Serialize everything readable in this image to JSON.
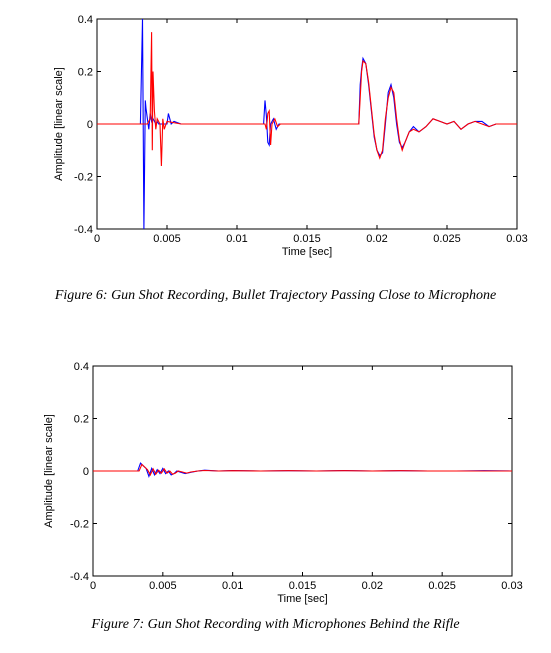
{
  "figures": [
    {
      "caption": "Figure 6:  Gun Shot Recording, Bullet Trajectory Passing Close to Microphone"
    },
    {
      "caption": "Figure 7:  Gun Shot Recording with Microphones Behind the Rifle"
    }
  ],
  "chart_data": [
    {
      "type": "line",
      "title": "",
      "xlabel": "Time [sec]",
      "ylabel": "Amplitude [linear scale]",
      "xlim": [
        0,
        0.03
      ],
      "ylim": [
        -0.4,
        0.4
      ],
      "xticks": [
        "0",
        "0.005",
        "0.01",
        "0.015",
        "0.02",
        "0.025",
        "0.03"
      ],
      "yticks": [
        "0.4",
        "0.2",
        "0",
        "-0.2",
        "-0.4"
      ],
      "grid": false,
      "series": [
        {
          "color": "#0000ff",
          "x": [
            0,
            0.0031,
            0.00325,
            0.00335,
            0.00345,
            0.0035,
            0.0036,
            0.0037,
            0.0038,
            0.0039,
            0.004,
            0.0042,
            0.0043,
            0.0044,
            0.005,
            0.0051,
            0.0052,
            0.0053,
            0.0055,
            0.006,
            0.0119,
            0.012,
            0.0121,
            0.0122,
            0.0123,
            0.0124,
            0.0126,
            0.0128,
            0.013,
            0.0135,
            0.014,
            0.016,
            0.0187,
            0.0188,
            0.0189,
            0.019,
            0.0192,
            0.0194,
            0.0196,
            0.0198,
            0.02,
            0.0202,
            0.0204,
            0.0206,
            0.0208,
            0.021,
            0.0212,
            0.0214,
            0.0216,
            0.0218,
            0.022,
            0.0223,
            0.0226,
            0.023,
            0.0235,
            0.024,
            0.0245,
            0.025,
            0.0255,
            0.026,
            0.0265,
            0.027,
            0.0275,
            0.028,
            0.0285,
            0.029,
            0.0295,
            0.03
          ],
          "y": [
            0,
            0,
            0.4,
            -0.4,
            0.09,
            0.06,
            0.02,
            -0.02,
            0.04,
            0.01,
            0.02,
            0.0,
            0.01,
            0.0,
            0.0,
            0.04,
            0.02,
            0.0,
            0.01,
            0.0,
            0.0,
            0.09,
            0.03,
            -0.07,
            -0.08,
            0.0,
            0.02,
            -0.02,
            0.0,
            0.0,
            0.0,
            0.0,
            0.0,
            0.15,
            0.21,
            0.25,
            0.23,
            0.15,
            0.05,
            -0.05,
            -0.1,
            -0.12,
            -0.11,
            0.0,
            0.12,
            0.15,
            0.1,
            0.0,
            -0.07,
            -0.09,
            -0.07,
            -0.03,
            -0.01,
            -0.03,
            -0.01,
            0.02,
            0.01,
            0.0,
            0.01,
            -0.02,
            0.0,
            0.01,
            0.01,
            -0.01,
            0.0,
            0.0,
            0.0,
            0.0
          ]
        },
        {
          "color": "#ff0000",
          "x": [
            0,
            0.0036,
            0.0038,
            0.0039,
            0.00395,
            0.004,
            0.0041,
            0.0042,
            0.0043,
            0.0045,
            0.0046,
            0.0047,
            0.0048,
            0.005,
            0.006,
            0.012,
            0.0121,
            0.0122,
            0.0123,
            0.0124,
            0.0125,
            0.0127,
            0.0129,
            0.0131,
            0.0135,
            0.014,
            0.016,
            0.0187,
            0.0188,
            0.0189,
            0.019,
            0.0192,
            0.0194,
            0.0196,
            0.0198,
            0.02,
            0.0202,
            0.0204,
            0.0206,
            0.0208,
            0.021,
            0.0212,
            0.0214,
            0.0216,
            0.0218,
            0.022,
            0.0223,
            0.0226,
            0.023,
            0.0235,
            0.024,
            0.0245,
            0.025,
            0.0255,
            0.026,
            0.0265,
            0.027,
            0.0275,
            0.028,
            0.0285,
            0.029,
            0.0295,
            0.03
          ],
          "y": [
            0,
            0,
            0.02,
            0.35,
            -0.1,
            0.2,
            0.05,
            -0.02,
            0.02,
            0.0,
            -0.16,
            0.02,
            -0.02,
            0.01,
            0.0,
            0.0,
            -0.02,
            0.04,
            0.05,
            -0.08,
            0.0,
            0.02,
            -0.01,
            0.0,
            0.0,
            0.0,
            0.0,
            0.0,
            0.1,
            0.2,
            0.24,
            0.23,
            0.16,
            0.06,
            -0.04,
            -0.1,
            -0.13,
            -0.1,
            0.02,
            0.1,
            0.14,
            0.12,
            0.02,
            -0.06,
            -0.1,
            -0.07,
            -0.03,
            -0.02,
            -0.03,
            -0.01,
            0.02,
            0.01,
            0.0,
            0.01,
            -0.02,
            0.0,
            0.01,
            0.0,
            -0.01,
            0.0,
            0.0,
            0.0,
            0.0
          ]
        }
      ]
    },
    {
      "type": "line",
      "title": "",
      "xlabel": "Time [sec]",
      "ylabel": "Amplitude [linear scale]",
      "xlim": [
        0,
        0.03
      ],
      "ylim": [
        -0.4,
        0.4
      ],
      "xticks": [
        "0",
        "0.005",
        "0.01",
        "0.015",
        "0.02",
        "0.025",
        "0.03"
      ],
      "yticks": [
        "0.4",
        "0.2",
        "0",
        "-0.2",
        "-0.4"
      ],
      "grid": false,
      "series": [
        {
          "color": "#0000ff",
          "x": [
            0,
            0.0032,
            0.0034,
            0.0036,
            0.0038,
            0.004,
            0.0042,
            0.0044,
            0.0046,
            0.0048,
            0.005,
            0.0052,
            0.0054,
            0.0056,
            0.0058,
            0.006,
            0.0063,
            0.0066,
            0.007,
            0.0075,
            0.008,
            0.009,
            0.01,
            0.012,
            0.014,
            0.016,
            0.018,
            0.02,
            0.022,
            0.024,
            0.026,
            0.028,
            0.03
          ],
          "y": [
            0,
            0,
            0.03,
            0.02,
            0.01,
            -0.02,
            0.01,
            -0.015,
            0.005,
            -0.01,
            0.01,
            -0.01,
            0.0,
            -0.015,
            -0.01,
            0.0,
            -0.005,
            -0.01,
            -0.005,
            0.0,
            0.003,
            0.0,
            0.002,
            0.0,
            0.001,
            0.0,
            0.002,
            0.0,
            0.001,
            0.0,
            0.0,
            0.001,
            0.0
          ]
        },
        {
          "color": "#ff0000",
          "x": [
            0,
            0.0033,
            0.0035,
            0.0037,
            0.0039,
            0.0041,
            0.0043,
            0.0045,
            0.0047,
            0.0049,
            0.0051,
            0.0053,
            0.0055,
            0.0057,
            0.0059,
            0.0061,
            0.0064,
            0.0067,
            0.007,
            0.0075,
            0.008,
            0.009,
            0.01,
            0.012,
            0.014,
            0.016,
            0.018,
            0.02,
            0.022,
            0.024,
            0.026,
            0.028,
            0.03
          ],
          "y": [
            0,
            0,
            0.025,
            0.015,
            0.005,
            -0.015,
            0.008,
            -0.012,
            0.003,
            -0.008,
            0.008,
            -0.008,
            0.0,
            -0.012,
            -0.008,
            0.0,
            -0.004,
            -0.008,
            -0.004,
            0.0,
            0.002,
            0.0,
            0.001,
            0.0,
            0.001,
            0.0,
            0.001,
            0.0,
            0.001,
            0.0,
            0.0,
            0.0,
            0.0
          ]
        }
      ]
    }
  ]
}
